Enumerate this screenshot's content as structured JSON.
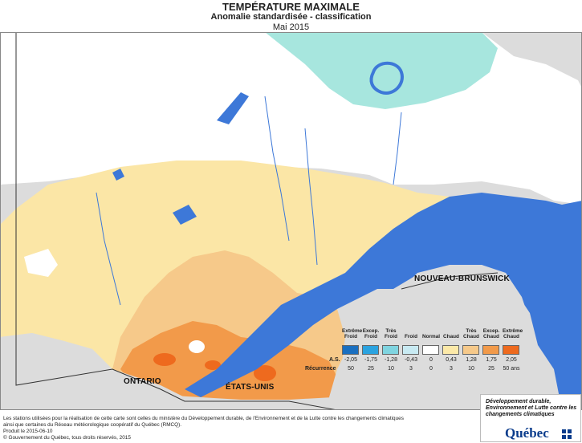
{
  "title": "TEMPÉRATURE MAXIMALE",
  "subtitle": "Anomalie standardisée - classification",
  "period": "Mai 2015",
  "map_labels": {
    "nb": "NOUVEAU-BRUNSWICK",
    "on": "ONTARIO",
    "us": "ÉTATS-UNIS"
  },
  "legend": {
    "classes": [
      {
        "label": "Extrême Froid",
        "color": "#1a6fc0"
      },
      {
        "label": "Excep. Froid",
        "color": "#2aa3e0"
      },
      {
        "label": "Très Froid",
        "color": "#7fd4e0"
      },
      {
        "label": "Froid",
        "color": "#c8eaf2"
      },
      {
        "label": "Normal",
        "color": "#ffffff"
      },
      {
        "label": "Chaud",
        "color": "#fce9a8"
      },
      {
        "label": "Très Chaud",
        "color": "#f6c98a"
      },
      {
        "label": "Excep. Chaud",
        "color": "#f29a4a"
      },
      {
        "label": "Extrême Chaud",
        "color": "#ee6a1e"
      }
    ],
    "as_label": "A.S.",
    "as_values": [
      "-2,05",
      "-1,75",
      "-1,28",
      "-0,43",
      "0",
      "0,43",
      "1,28",
      "1,75",
      "2,05"
    ],
    "rec_label": "Récurrence",
    "rec_values": [
      "50",
      "25",
      "10",
      "3",
      "0",
      "3",
      "10",
      "25",
      "50 ans"
    ]
  },
  "footer": {
    "line1": "Les stations utilisées pour la réalisation de cette carte sont celles du ministère du Développement durable, de l'Environnement et de la Lutte contre les changements climatiques",
    "line2": "ainsi que certaines du Réseau météorologique coopératif du Québec (RMCQ).",
    "produced": "Produit le 2015-06-10",
    "copyright": "© Gouvernement du Québec, tous droits réservés, 2015"
  },
  "logo": {
    "text": "Développement durable, Environnement et Lutte contre les changements climatiques",
    "name": "Québec"
  },
  "colors": {
    "water": "#3d78d8",
    "land_outside": "#dcdcdc",
    "border": "#333333"
  }
}
